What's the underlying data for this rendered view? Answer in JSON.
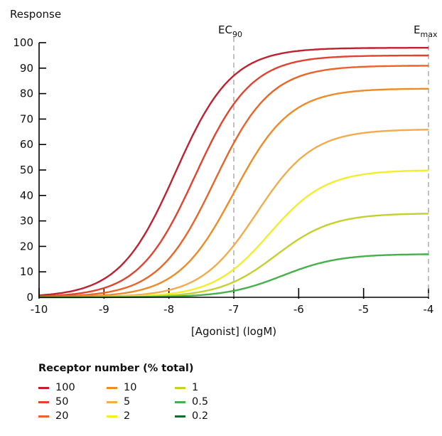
{
  "chart_data": {
    "type": "line",
    "ylabel": "Response",
    "xlabel": "[Agonist] (logM)",
    "xlim": [
      -10,
      -4
    ],
    "ylim": [
      0,
      100
    ],
    "x_ticks": [
      "-10",
      "-9",
      "-8",
      "-7",
      "-6",
      "-5",
      "-4"
    ],
    "y_ticks": [
      "0",
      "10",
      "20",
      "30",
      "40",
      "50",
      "60",
      "70",
      "80",
      "90",
      "100"
    ],
    "annotations": [
      {
        "text": "EC",
        "subscript": "90",
        "x": -7
      },
      {
        "text": "E",
        "subscript": "max",
        "x": -4
      }
    ],
    "legend_title": "Receptor number (% total)",
    "series": [
      {
        "name": "100",
        "color": "#c0212f",
        "emax": 98,
        "ec50": -7.9
      },
      {
        "name": "50",
        "color": "#e2432f",
        "emax": 95,
        "ec50": -7.6
      },
      {
        "name": "20",
        "color": "#ec6328",
        "emax": 91,
        "ec50": -7.3
      },
      {
        "name": "10",
        "color": "#f08a26",
        "emax": 82,
        "ec50": -7.0
      },
      {
        "name": "5",
        "color": "#f4ab4e",
        "emax": 66,
        "ec50": -6.65
      },
      {
        "name": "2",
        "color": "#f2ee2e",
        "emax": 50,
        "ec50": -6.45
      },
      {
        "name": "1",
        "color": "#c3d12e",
        "emax": 33,
        "ec50": -6.35
      },
      {
        "name": "0.5",
        "color": "#46b04c",
        "emax": 17,
        "ec50": -6.25
      },
      {
        "name": "0.2",
        "color": "#17692f",
        "emax": 0,
        "ec50": -6.2
      }
    ]
  }
}
